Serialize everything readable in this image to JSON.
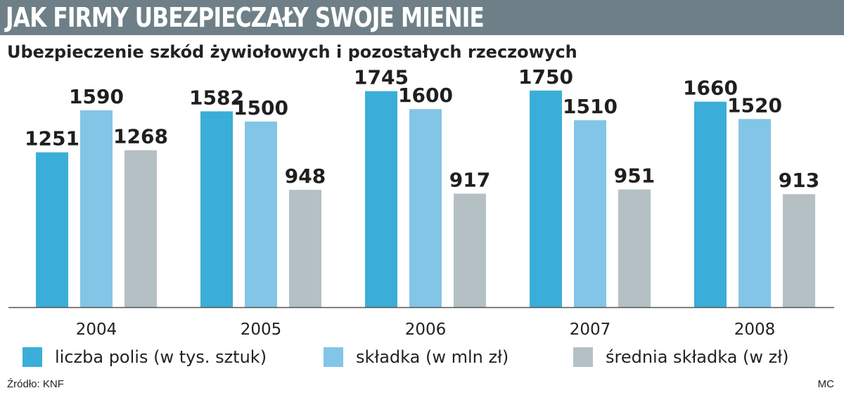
{
  "header": {
    "title": "JAK FIRMY UBEZPIECZAŁY SWOJE MIENIE"
  },
  "chart_data": {
    "type": "bar",
    "title": "Ubezpieczenie szkód żywiołowych i pozostałych rzeczowych",
    "categories": [
      "2004",
      "2005",
      "2006",
      "2007",
      "2008"
    ],
    "series": [
      {
        "name": "liczba polis (w tys. sztuk)",
        "color": "#3aaed8",
        "values": [
          1251,
          1582,
          1745,
          1750,
          1660
        ]
      },
      {
        "name": "składka (w mln zł)",
        "color": "#82c5e6",
        "values": [
          1590,
          1500,
          1600,
          1510,
          1520
        ]
      },
      {
        "name": "średnia składka (w zł)",
        "color": "#b5c0c5",
        "values": [
          1268,
          948,
          917,
          951,
          913
        ]
      }
    ],
    "ylim": [
      0,
      1800
    ],
    "grid": false,
    "legend_position": "bottom"
  },
  "footer": {
    "source": "Źródło: KNF",
    "credit": "MC"
  }
}
